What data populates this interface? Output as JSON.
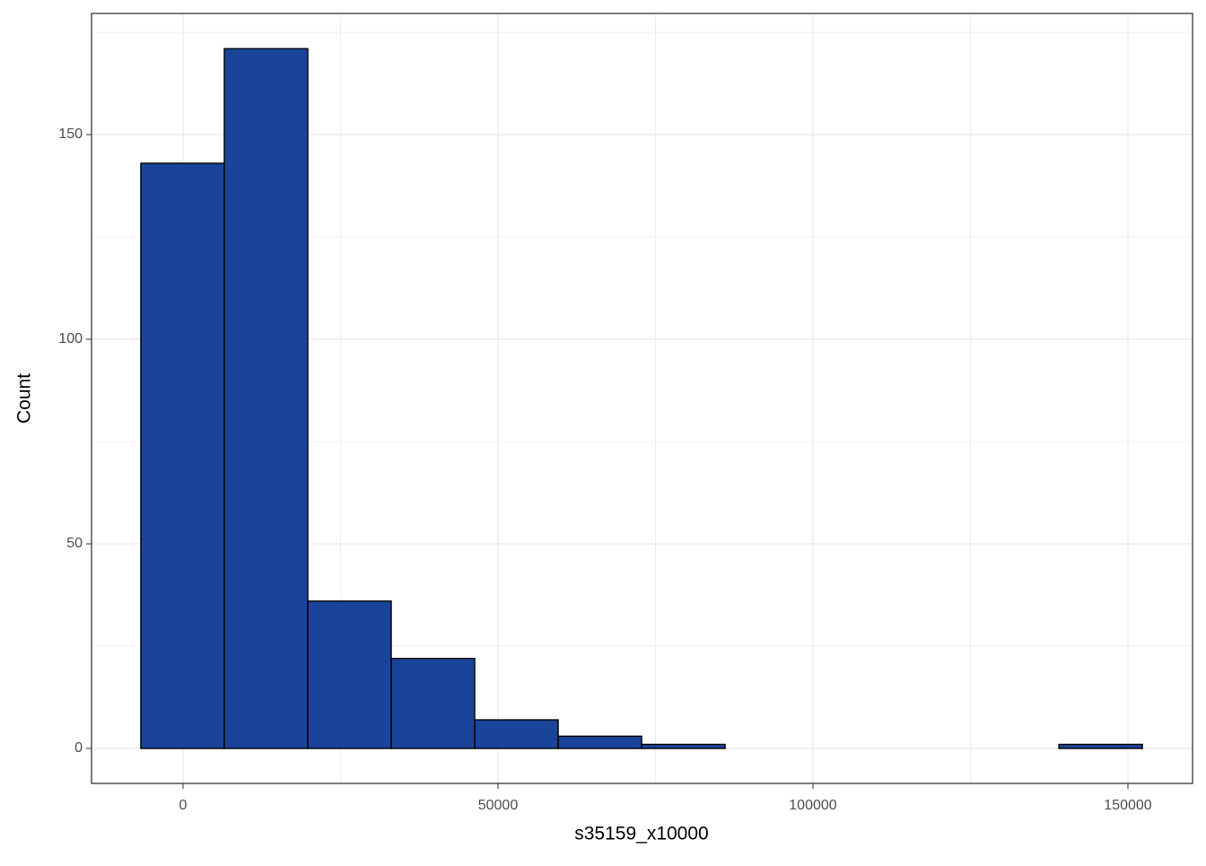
{
  "chart_data": {
    "type": "histogram",
    "x_label": "s35159_x10000",
    "y_label": "Count",
    "bins": [
      -6700,
      6550,
      19800,
      33050,
      46300,
      59550,
      72800,
      86050,
      99300,
      112550,
      125800,
      139050,
      152300
    ],
    "values": [
      143,
      171,
      36,
      22,
      7,
      3,
      1,
      0,
      0,
      0,
      0,
      1
    ],
    "color": "#1a4499",
    "edge_color": "#000000",
    "xlim": [
      -14530,
      160260
    ],
    "ylim": [
      -8.55,
      179.6
    ],
    "xticks": [
      0,
      50000,
      100000,
      150000
    ],
    "yticks": [
      0,
      50,
      100,
      150
    ],
    "x_minor_grid": [
      25000,
      75000,
      125000
    ],
    "y_minor_grid": [
      25,
      75,
      125,
      175
    ],
    "grid": true
  }
}
